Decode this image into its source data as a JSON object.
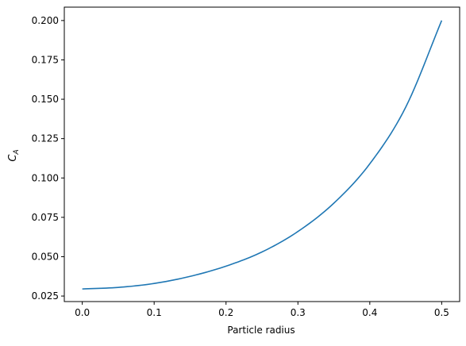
{
  "chart_data": {
    "type": "line",
    "xlabel": "Particle radius",
    "ylabel_main": "C",
    "ylabel_sub": "A",
    "xlim": [
      -0.025,
      0.525
    ],
    "ylim": [
      0.0215,
      0.2085
    ],
    "x_ticks": [
      0.0,
      0.1,
      0.2,
      0.3,
      0.4,
      0.5
    ],
    "x_tick_labels": [
      "0.0",
      "0.1",
      "0.2",
      "0.3",
      "0.4",
      "0.5"
    ],
    "y_ticks": [
      0.025,
      0.05,
      0.075,
      0.1,
      0.125,
      0.15,
      0.175,
      0.2
    ],
    "y_tick_labels": [
      "0.025",
      "0.050",
      "0.075",
      "0.100",
      "0.125",
      "0.150",
      "0.175",
      "0.200"
    ],
    "grid": false,
    "series": [
      {
        "color": "#1f77b4",
        "x": [
          0.0,
          0.05,
          0.1,
          0.15,
          0.2,
          0.25,
          0.3,
          0.35,
          0.4,
          0.45,
          0.5
        ],
        "y": [
          0.0295,
          0.0305,
          0.033,
          0.0375,
          0.044,
          0.053,
          0.066,
          0.084,
          0.109,
          0.145,
          0.2
        ]
      }
    ]
  }
}
